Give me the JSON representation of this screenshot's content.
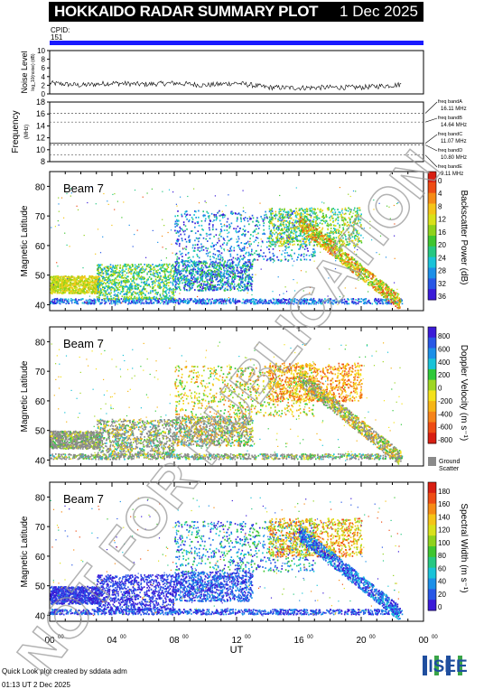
{
  "header": {
    "title": "HOKKAIDO RADAR SUMMARY PLOT",
    "date": "1 Dec 2025"
  },
  "cpid": {
    "label": "CPID:",
    "value": "151"
  },
  "noise_panel": {
    "ylabel": "Noise Level",
    "ylabel_sub": "log_10(noise) (dB)"
  },
  "freq_panel": {
    "ylabel": "Frequency",
    "ylabel_sub": "(MHz)",
    "bands": [
      {
        "label": "freq bandA",
        "value": "16.11 MHz"
      },
      {
        "label": "freq bandB",
        "value": "14.64 MHz"
      },
      {
        "label": "freq bandC",
        "value": "11.07 MHz"
      },
      {
        "label": "freq bandD",
        "value": "10.80 MHz"
      },
      {
        "label": "freq bandE",
        "value": "9.11 MHz"
      }
    ]
  },
  "beam_panels": [
    {
      "beam": "Beam  7",
      "ylabel": "Magnetic Latitude",
      "cbar_label": "Backscatter Power (dB)"
    },
    {
      "beam": "Beam  7",
      "ylabel": "Magnetic Latitude",
      "cbar_label": "Doppler Velocity (m s⁻¹)",
      "ground_label1": "Ground",
      "ground_label2": "Scatter"
    },
    {
      "beam": "Beam  7",
      "ylabel": "Magnetic Latitude",
      "cbar_label": "Spectral Width (m s⁻¹)"
    }
  ],
  "xaxis": {
    "label": "UT"
  },
  "footer": {
    "line1": "Quick Look plot created by sddata adm",
    "line2": "01:13 UT  2 Dec 2025"
  },
  "logo": "ISEE",
  "watermark": "NOT FOR PUBLICATION",
  "chart_data": [
    {
      "type": "line",
      "title": "Noise Level",
      "ylim": [
        0,
        10
      ],
      "yticks": [
        "0",
        "2",
        "4",
        "6",
        "8",
        "10"
      ],
      "x": [
        0,
        2,
        4,
        6,
        8,
        10,
        12,
        14,
        16,
        18,
        20,
        22,
        24
      ],
      "values": [
        2.5,
        2.0,
        2.5,
        2.2,
        2.5,
        2.0,
        2.5,
        1.5,
        1.4,
        1.5,
        1.5,
        2.0,
        2.5
      ]
    },
    {
      "type": "line",
      "title": "Frequency",
      "ylim": [
        8,
        18
      ],
      "yticks": [
        "8",
        "10",
        "12",
        "14",
        "16",
        "18"
      ],
      "reference_lines": [
        16.11,
        14.64,
        11.07,
        10.8,
        9.11
      ]
    },
    {
      "type": "heatmap",
      "title": "Backscatter Power",
      "ylim": [
        38,
        85
      ],
      "yticks": [
        "40",
        "50",
        "60",
        "70",
        "80"
      ],
      "xlim": [
        0,
        24
      ],
      "xticks": [
        "00",
        "04",
        "08",
        "12",
        "16",
        "20",
        "00"
      ],
      "cbar_ticks": [
        "0",
        "4",
        "8",
        "12",
        "16",
        "20",
        "24",
        "28",
        "32",
        "36"
      ]
    },
    {
      "type": "heatmap",
      "title": "Doppler Velocity",
      "ylim": [
        38,
        85
      ],
      "yticks": [
        "40",
        "50",
        "60",
        "70",
        "80"
      ],
      "xlim": [
        0,
        24
      ],
      "xticks": [
        "00",
        "04",
        "08",
        "12",
        "16",
        "20",
        "00"
      ],
      "cbar_ticks": [
        "800",
        "600",
        "400",
        "200",
        "0",
        "-200",
        "-400",
        "-600",
        "-800"
      ]
    },
    {
      "type": "heatmap",
      "title": "Spectral Width",
      "ylim": [
        38,
        85
      ],
      "yticks": [
        "40",
        "50",
        "60",
        "70",
        "80"
      ],
      "xlim": [
        0,
        24
      ],
      "xticks": [
        "00",
        "04",
        "08",
        "12",
        "16",
        "20",
        "00"
      ],
      "cbar_ticks": [
        "180",
        "160",
        "140",
        "120",
        "100",
        "80",
        "60",
        "40",
        "20",
        "0"
      ]
    }
  ]
}
